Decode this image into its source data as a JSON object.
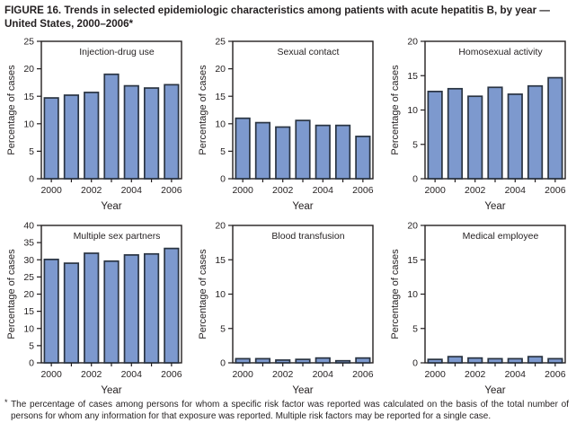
{
  "title": "FIGURE 16. Trends in selected epidemiologic characteristics among patients with acute hepatitis B, by year — United States, 2000–2006*",
  "footnote_marker": "*",
  "footnote": "The percentage of cases among persons for whom a specific risk factor was reported was calculated on the basis of the total number of persons for whom any information for that exposure was reported. Multiple risk factors may be reported for a single case.",
  "colors": {
    "background": "#ffffff",
    "bar_fill": "#7d99ce",
    "bar_stroke": "#2a3442",
    "axis": "#231f20",
    "text": "#231f20"
  },
  "chart_data": [
    {
      "type": "bar",
      "title": "Injection-drug use",
      "xlabel": "Year",
      "ylabel": "Percentage of cases",
      "categories": [
        2000,
        2001,
        2002,
        2003,
        2004,
        2005,
        2006
      ],
      "values": [
        14.7,
        15.2,
        15.7,
        19.0,
        16.9,
        16.5,
        17.1
      ],
      "ylim": [
        0,
        25
      ],
      "ytick_step": 5,
      "xtick_labels": [
        2000,
        2002,
        2004,
        2006
      ],
      "grid": false,
      "legend": false
    },
    {
      "type": "bar",
      "title": "Sexual contact",
      "xlabel": "Year",
      "ylabel": "Percentage of cases",
      "categories": [
        2000,
        2001,
        2002,
        2003,
        2004,
        2005,
        2006
      ],
      "values": [
        11.0,
        10.2,
        9.4,
        10.6,
        9.7,
        9.7,
        7.7
      ],
      "ylim": [
        0,
        25
      ],
      "ytick_step": 5,
      "xtick_labels": [
        2000,
        2002,
        2004,
        2006
      ],
      "grid": false,
      "legend": false
    },
    {
      "type": "bar",
      "title": "Homosexual activity",
      "xlabel": "Year",
      "ylabel": "Percentage of cases",
      "categories": [
        2000,
        2001,
        2002,
        2003,
        2004,
        2005,
        2006
      ],
      "values": [
        12.7,
        13.1,
        12.0,
        13.3,
        12.3,
        13.5,
        14.7
      ],
      "ylim": [
        0,
        20
      ],
      "ytick_step": 5,
      "xtick_labels": [
        2000,
        2002,
        2004,
        2006
      ],
      "grid": false,
      "legend": false
    },
    {
      "type": "bar",
      "title": "Multiple sex partners",
      "xlabel": "Year",
      "ylabel": "Percentage of cases",
      "categories": [
        2000,
        2001,
        2002,
        2003,
        2004,
        2005,
        2006
      ],
      "values": [
        30.1,
        29.0,
        31.9,
        29.6,
        31.4,
        31.7,
        33.3
      ],
      "ylim": [
        0,
        40
      ],
      "ytick_step": 5,
      "xtick_labels": [
        2000,
        2002,
        2004,
        2006
      ],
      "grid": false,
      "legend": false
    },
    {
      "type": "bar",
      "title": "Blood transfusion",
      "xlabel": "Year",
      "ylabel": "Percentage of cases",
      "categories": [
        2000,
        2001,
        2002,
        2003,
        2004,
        2005,
        2006
      ],
      "values": [
        0.6,
        0.6,
        0.4,
        0.5,
        0.7,
        0.3,
        0.7
      ],
      "ylim": [
        0,
        20
      ],
      "ytick_step": 5,
      "xtick_labels": [
        2000,
        2002,
        2004,
        2006
      ],
      "grid": false,
      "legend": false
    },
    {
      "type": "bar",
      "title": "Medical employee",
      "xlabel": "Year",
      "ylabel": "Percentage of cases",
      "categories": [
        2000,
        2001,
        2002,
        2003,
        2004,
        2005,
        2006
      ],
      "values": [
        0.5,
        0.9,
        0.7,
        0.6,
        0.6,
        0.9,
        0.6
      ],
      "ylim": [
        0,
        20
      ],
      "ytick_step": 5,
      "xtick_labels": [
        2000,
        2002,
        2004,
        2006
      ],
      "grid": false,
      "legend": false
    }
  ]
}
